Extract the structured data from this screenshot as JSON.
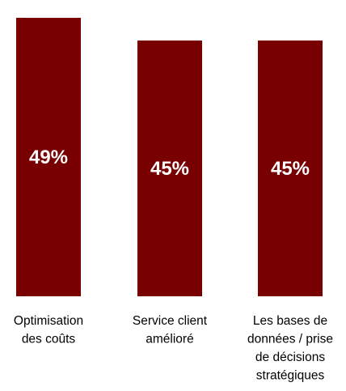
{
  "chart_data": {
    "type": "bar",
    "categories": [
      "Optimisation des coûts",
      "Service client amélioré",
      "Les bases de données / prise de décisions stratégiques"
    ],
    "category_lines": [
      [
        "Optimisation",
        "des coûts"
      ],
      [
        "Service client",
        "amélioré"
      ],
      [
        "Les bases de",
        "données / prise",
        "de décisions",
        "stratégiques"
      ]
    ],
    "values": [
      49,
      45,
      45
    ],
    "value_labels": [
      "49%",
      "45%",
      "45%"
    ],
    "ylim": [
      0,
      49
    ],
    "bar_color": "#780000",
    "value_label_color": "#ffffff",
    "grid": false,
    "title": "",
    "xlabel": "",
    "ylabel": ""
  }
}
